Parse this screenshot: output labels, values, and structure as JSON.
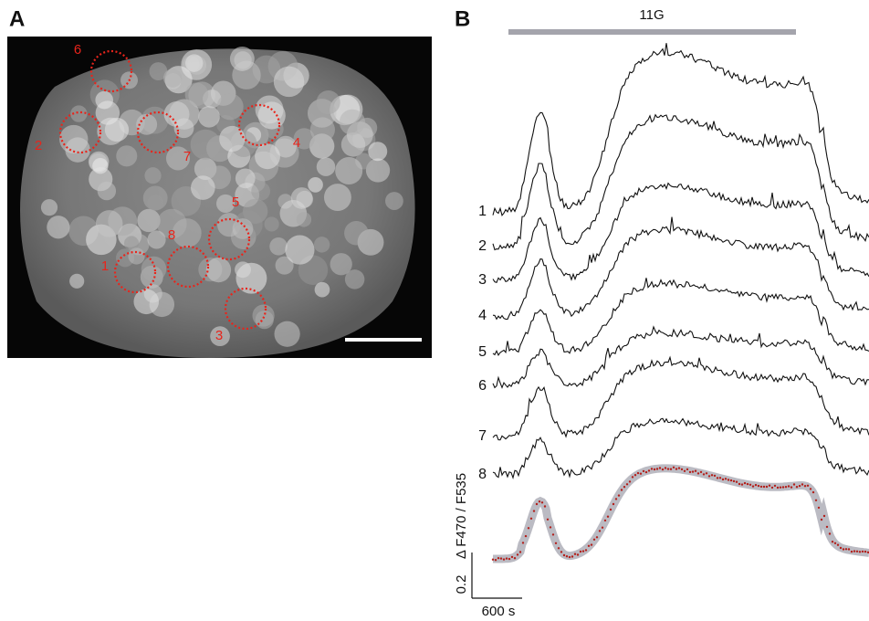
{
  "panel_a": {
    "label": "A",
    "rois": [
      "6",
      "2",
      "7",
      "4",
      "5",
      "8",
      "1",
      "3"
    ]
  },
  "panel_b": {
    "label": "B",
    "stimulus": "11G",
    "traces": [
      "1",
      "2",
      "3",
      "4",
      "5",
      "6",
      "7",
      "8"
    ],
    "scale_y_label": "Δ F470 / F535",
    "scale_y_value": "0.2",
    "scale_x": "600 s"
  }
}
